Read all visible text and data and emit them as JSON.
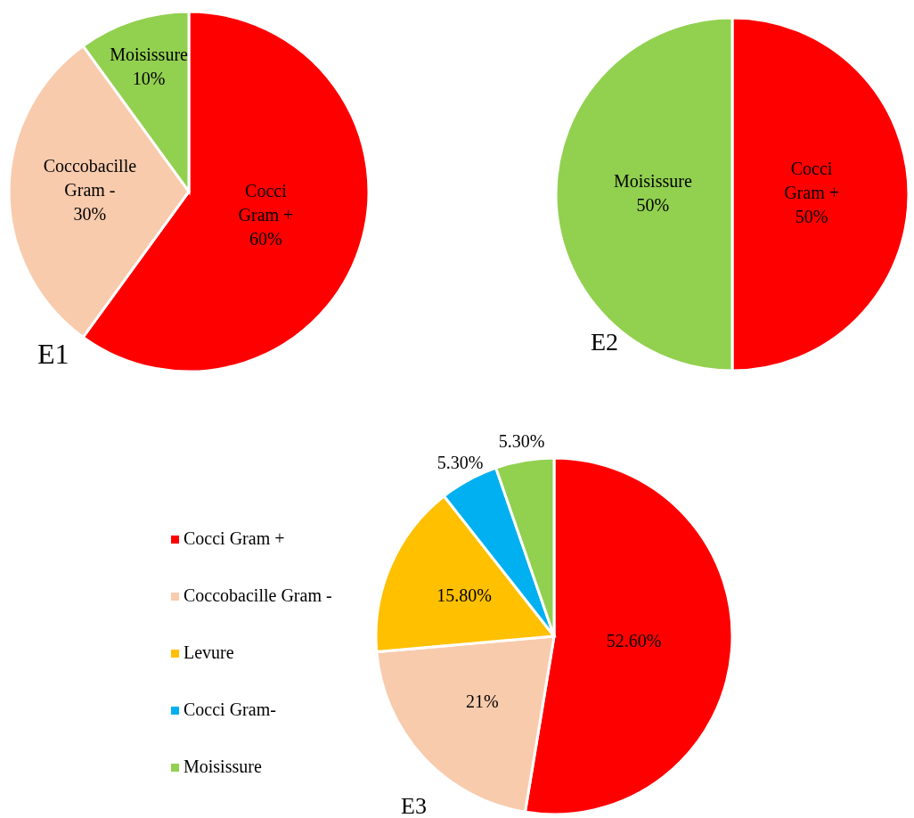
{
  "chart_data": [
    {
      "type": "pie",
      "title": "E1",
      "categories": [
        "Cocci Gram +",
        "Coccobacille Gram -",
        "Moisissure"
      ],
      "values": [
        60,
        30,
        10
      ],
      "colors": [
        "#ff0000",
        "#f8cbad",
        "#92d050"
      ],
      "value_labels": [
        "60%",
        "30%",
        "10%"
      ],
      "legend": false
    },
    {
      "type": "pie",
      "title": "E2",
      "categories": [
        "Cocci Gram +",
        "Moisissure"
      ],
      "values": [
        50,
        50
      ],
      "colors": [
        "#ff0000",
        "#92d050"
      ],
      "value_labels": [
        "50%",
        "50%"
      ],
      "legend": false
    },
    {
      "type": "pie",
      "title": "E3",
      "categories": [
        "Cocci Gram +",
        "Coccobacille Gram -",
        "Levure",
        "Cocci Gram-",
        "Moisissure"
      ],
      "values": [
        52.6,
        21,
        15.8,
        5.3,
        5.3
      ],
      "colors": [
        "#ff0000",
        "#f8cbad",
        "#ffc000",
        "#00b0f0",
        "#92d050"
      ],
      "value_labels": [
        "52.60%",
        "21%",
        "15.80%",
        "5.30%",
        "5.30%"
      ],
      "legend": "left"
    }
  ]
}
